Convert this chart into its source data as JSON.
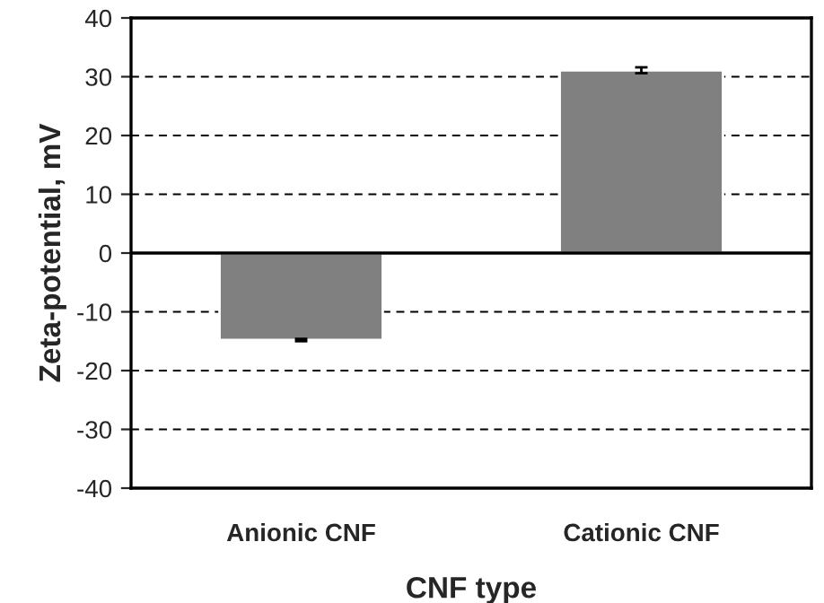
{
  "chart_data": {
    "type": "bar",
    "xlabel": "CNF type",
    "ylabel": "Zeta-potential, mV",
    "categories": [
      "Anionic CNF",
      "Cationic CNF"
    ],
    "values": [
      -14.8,
      31.1
    ],
    "errors": [
      0.2,
      0.5
    ],
    "color": "#808080",
    "ylim": [
      -40,
      40
    ],
    "yticks": [
      -40,
      -30,
      -20,
      -10,
      0,
      10,
      20,
      30,
      40
    ],
    "grid": "y"
  }
}
